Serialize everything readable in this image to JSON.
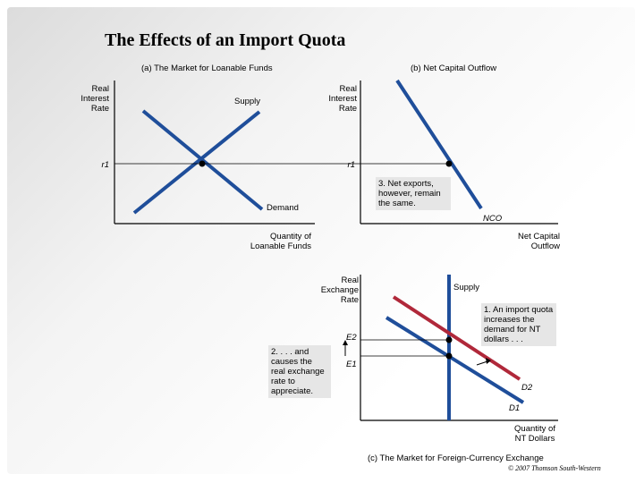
{
  "title": "The Effects of an Import Quota",
  "panel_a": {
    "caption": "(a) The Market for Loanable Funds",
    "y_axis": "Real\nInterest\nRate",
    "x_axis": "Quantity of\nLoanable Funds",
    "supply_label": "Supply",
    "demand_label": "Demand",
    "r1_label": "r1"
  },
  "panel_b": {
    "caption": "(b) Net Capital Outflow",
    "y_axis": "Real\nInterest\nRate",
    "x_axis": "Net Capital\nOutflow",
    "nco_label": "NCO",
    "r1_label": "r1",
    "note": "3. Net exports, however, remain the same."
  },
  "panel_c": {
    "caption": "(c) The Market for Foreign-Currency Exchange",
    "y_axis": "Real\nExchange\nRate",
    "x_axis": "Quantity of\nNT Dollars",
    "supply_label": "Supply",
    "d1_label": "D1",
    "d2_label": "D2",
    "e1_label": "E1",
    "e2_label": "E2",
    "note1": "1. An import quota increases the demand for NT dollars . . .",
    "note2": "2. . . . and causes the real exchange rate to appreciate."
  },
  "credit": "© 2007 Thomson South-Western",
  "colors": {
    "curve_blue": "#1f4e9a",
    "curve_red": "#b0283a",
    "axis": "#000000",
    "note_bg": "#e6e6e6"
  }
}
